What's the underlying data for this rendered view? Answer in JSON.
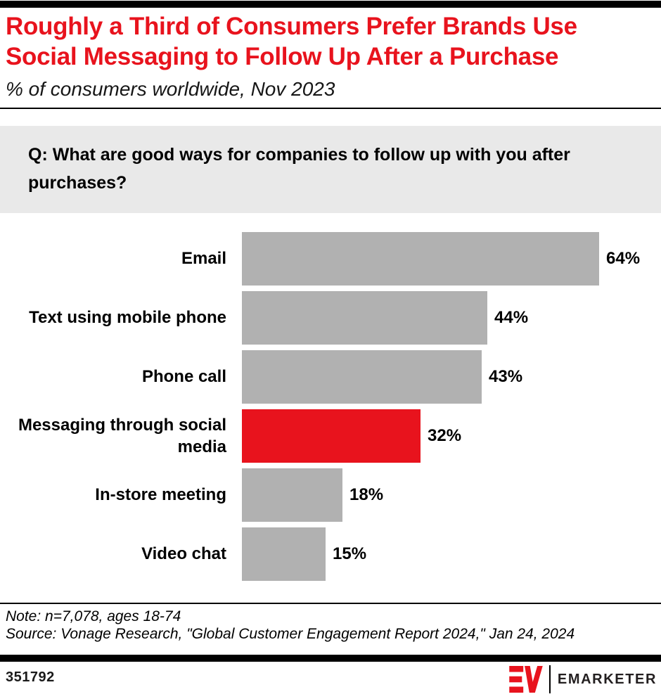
{
  "header": {
    "title_lines": [
      "Roughly a Third of Consumers Prefer Brands Use",
      "Social Messaging to Follow Up After a Purchase"
    ],
    "subtitle": "% of consumers worldwide, Nov 2023"
  },
  "question": "Q: What are good ways for companies to follow up with you after purchases?",
  "chart_data": {
    "type": "bar",
    "orientation": "horizontal",
    "title": "Roughly a Third of Consumers Prefer Brands Use Social Messaging to Follow Up After a Purchase",
    "subtitle": "% of consumers worldwide, Nov 2023",
    "categories": [
      "Email",
      "Text using mobile phone",
      "Phone call",
      "Messaging through social media",
      "In-store meeting",
      "Video chat"
    ],
    "values": [
      64,
      44,
      43,
      32,
      18,
      15
    ],
    "value_labels": [
      "64%",
      "44%",
      "43%",
      "32%",
      "18%",
      "15%"
    ],
    "value_suffix": "%",
    "highlight_index": 3,
    "xlim": [
      0,
      64
    ],
    "grid": false,
    "legend": "none",
    "colors": {
      "bar_default": "#b1b1b1",
      "bar_highlight": "#e8131d"
    }
  },
  "footnotes": {
    "note": "Note: n=7,078, ages 18-74",
    "source": "Source: Vonage Research, \"Global Customer Engagement Report 2024,\" Jan 24, 2024"
  },
  "footer": {
    "chart_id": "351792",
    "brand_name": "EMARKETER"
  },
  "colors": {
    "accent_red": "#e8131d",
    "bar_gray": "#b1b1b1",
    "question_bg": "#e9e9e9"
  }
}
